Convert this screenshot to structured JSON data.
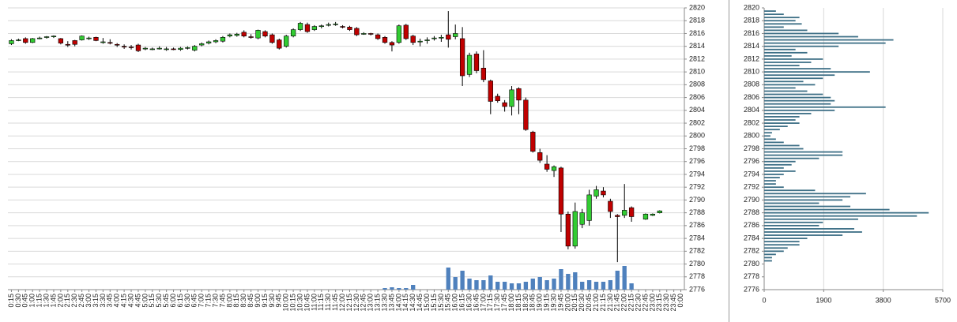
{
  "chart_data": [
    {
      "type": "candlestick",
      "categories": [
        "0:15",
        "0:30",
        "0:45",
        "1:00",
        "1:15",
        "1:30",
        "1:45",
        "2:00",
        "2:15",
        "2:30",
        "2:45",
        "3:00",
        "3:15",
        "3:30",
        "3:45",
        "4:00",
        "4:15",
        "4:30",
        "4:45",
        "5:00",
        "5:15",
        "5:30",
        "5:45",
        "6:00",
        "6:15",
        "6:30",
        "6:45",
        "7:00",
        "7:15",
        "7:30",
        "7:45",
        "8:00",
        "8:15",
        "8:30",
        "8:45",
        "9:00",
        "9:15",
        "9:30",
        "9:45",
        "10:00",
        "10:15",
        "10:30",
        "10:45",
        "11:00",
        "11:15",
        "11:30",
        "11:45",
        "12:00",
        "12:15",
        "12:30",
        "12:45",
        "13:00",
        "13:15",
        "13:30",
        "13:45",
        "14:00",
        "14:15",
        "14:30",
        "14:45",
        "15:00",
        "15:15",
        "15:30",
        "15:45",
        "16:00",
        "16:15",
        "16:30",
        "16:45",
        "17:00",
        "17:15",
        "17:30",
        "17:45",
        "18:00",
        "18:15",
        "18:30",
        "18:45",
        "19:00",
        "19:15",
        "19:30",
        "19:45",
        "20:00",
        "20:15",
        "20:30",
        "20:45",
        "21:00",
        "21:15",
        "21:30",
        "21:45",
        "22:00",
        "22:15",
        "22:30",
        "22:45",
        "23:00",
        "23:15",
        "23:30",
        "23:45",
        "0:00"
      ],
      "open": [
        2814.4,
        2815,
        2815.2,
        2814.6,
        2815.3,
        2815.4,
        2815.5,
        2815.2,
        2814.3,
        2814.9,
        2815,
        2815.3,
        2815.4,
        2814.7,
        2814.6,
        2814.3,
        2814,
        2813.9,
        2814.2,
        2813.6,
        2813.6,
        2813.7,
        2813.6,
        2813.6,
        2813.5,
        2813.7,
        2813.4,
        2814.2,
        2814.5,
        2814.7,
        2814.8,
        2815.6,
        2815.7,
        2816.2,
        2815.5,
        2815.3,
        2816.3,
        2815.8,
        2815,
        2814,
        2815.6,
        2816.6,
        2817.4,
        2816.6,
        2817.1,
        2817.3,
        2817.4,
        2817.1,
        2817,
        2816.8,
        2816,
        2816,
        2815.8,
        2815.4,
        2814.6,
        2814.6,
        2817.3,
        2815.6,
        2814.8,
        2815,
        2815.3,
        2815.4,
        2815.8,
        2815.5,
        2815.2,
        2809.6,
        2812.8,
        2810.6,
        2808.6,
        2806.2,
        2805.2,
        2804.6,
        2807.4,
        2805.6,
        2800.6,
        2797.4,
        2795.6,
        2794.6,
        2795,
        2787.8,
        2782.8,
        2786.2,
        2786.8,
        2790.6,
        2791.4,
        2789.8,
        2787.6,
        2787.6,
        2788.8,
        null,
        2787,
        2787.6,
        2788,
        null,
        null,
        null
      ],
      "high": [
        2815.1,
        2815.2,
        2815.4,
        2815.3,
        2815.5,
        2815.6,
        2815.7,
        2815.3,
        2814.8,
        2815,
        2815.7,
        2815.5,
        2815.5,
        2815.3,
        2815.1,
        2814.5,
        2814.3,
        2814.2,
        2814.4,
        2813.9,
        2813.8,
        2814,
        2813.9,
        2813.8,
        2813.9,
        2814,
        2814.2,
        2814.6,
        2814.9,
        2815.1,
        2815.6,
        2816,
        2816.1,
        2816.5,
        2815.9,
        2816.6,
        2816.5,
        2816,
        2815.2,
        2815.8,
        2816.8,
        2817.8,
        2817.7,
        2817.3,
        2817.4,
        2817.7,
        2817.8,
        2817.3,
        2817.2,
        2817,
        2816.2,
        2816.1,
        2816,
        2815.6,
        2814.8,
        2817.4,
        2817.5,
        2815.8,
        2815.2,
        2815.4,
        2815.6,
        2815.8,
        2819.5,
        2817.4,
        2817,
        2813,
        2813.2,
        2813.4,
        2808.8,
        2806.6,
        2805.6,
        2807.8,
        2807.6,
        2806,
        2800.8,
        2798,
        2797,
        2795.4,
        2795.2,
        2788.2,
        2789.6,
        2788.6,
        2791.6,
        2792.2,
        2792,
        2790.2,
        2787.8,
        2792.5,
        2789,
        null,
        2787.9,
        2787.9,
        2788.4,
        null,
        null,
        null
      ],
      "low": [
        2814.2,
        2814.8,
        2814.4,
        2814.5,
        2815.1,
        2815.2,
        2815.3,
        2814.3,
        2813.9,
        2814,
        2814.9,
        2815,
        2814.8,
        2814.4,
        2814.3,
        2813.9,
        2813.6,
        2813.5,
        2813.1,
        2813.4,
        2813.4,
        2813.5,
        2813.3,
        2813.4,
        2813.3,
        2813.5,
        2813.2,
        2814,
        2814.3,
        2814.5,
        2814.6,
        2815.4,
        2815.5,
        2815.4,
        2815.2,
        2815.1,
        2815.4,
        2814.4,
        2813.5,
        2813.8,
        2815.4,
        2816.4,
        2816.1,
        2816.4,
        2816.8,
        2817.1,
        2817.2,
        2816.8,
        2816.4,
        2815.6,
        2815.8,
        2815.7,
        2815,
        2814.4,
        2813.2,
        2814.4,
        2815,
        2814.2,
        2814,
        2814.4,
        2814.9,
        2814.7,
        2813.8,
        2815.1,
        2807.8,
        2809.2,
        2809.8,
        2808.4,
        2803.4,
        2805.2,
        2803.8,
        2803.2,
        2803.4,
        2800.8,
        2797.4,
        2795.8,
        2794.4,
        2793.6,
        2785,
        2782.3,
        2782.4,
        2785.6,
        2786,
        2790.2,
        2790.4,
        2787.2,
        2780.3,
        2787.2,
        2786.6,
        null,
        2786.9,
        2787.5,
        2787.9,
        null,
        null,
        null
      ],
      "close": [
        2814.9,
        2815,
        2814.6,
        2815.2,
        2815.3,
        2815.5,
        2815.6,
        2814.5,
        2814.2,
        2814.3,
        2815.6,
        2815.3,
        2814.9,
        2814.7,
        2814.5,
        2814.2,
        2813.9,
        2813.8,
        2813.3,
        2813.7,
        2813.6,
        2813.7,
        2813.6,
        2813.5,
        2813.7,
        2813.8,
        2814,
        2814.4,
        2814.7,
        2814.9,
        2815.4,
        2815.8,
        2815.9,
        2815.6,
        2815.4,
        2816.5,
        2815.6,
        2814.6,
        2813.7,
        2815.6,
        2816.6,
        2817.6,
        2816.3,
        2817.1,
        2817.2,
        2817.4,
        2817.5,
        2817,
        2816.6,
        2815.8,
        2816,
        2815.9,
        2815.2,
        2814.6,
        2814.2,
        2817.2,
        2815.2,
        2814.6,
        2814.8,
        2815,
        2815.3,
        2815.4,
        2815.1,
        2816,
        2809.4,
        2812.6,
        2810.2,
        2808.8,
        2805.4,
        2805.5,
        2804.6,
        2807.2,
        2805.6,
        2801,
        2797.6,
        2796.2,
        2794.8,
        2795.2,
        2787.8,
        2782.8,
        2788.2,
        2788,
        2790.8,
        2791.6,
        2790.8,
        2788.2,
        2787.4,
        2788.4,
        2787.4,
        null,
        2787.8,
        2787.8,
        2788.3,
        null,
        null,
        null
      ],
      "volume": [
        null,
        null,
        null,
        null,
        null,
        null,
        null,
        null,
        null,
        null,
        null,
        null,
        null,
        null,
        null,
        null,
        null,
        null,
        null,
        null,
        null,
        null,
        null,
        null,
        null,
        null,
        null,
        null,
        null,
        null,
        null,
        null,
        null,
        null,
        null,
        null,
        null,
        null,
        null,
        null,
        null,
        null,
        null,
        null,
        null,
        null,
        null,
        null,
        null,
        null,
        null,
        null,
        null,
        320,
        480,
        320,
        320,
        960,
        null,
        null,
        null,
        null,
        4480,
        2560,
        3840,
        2240,
        1920,
        1920,
        2880,
        1600,
        1600,
        1280,
        1280,
        1600,
        2240,
        2560,
        1920,
        2240,
        4160,
        3200,
        3520,
        1600,
        1920,
        1600,
        1600,
        1920,
        3840,
        4800,
        1280,
        null,
        null,
        null,
        null,
        null,
        null,
        null
      ],
      "up_color": "#33cc33",
      "down_color": "#c00000",
      "volume_color": "#4f81bd",
      "ylim": [
        2776,
        2820
      ],
      "yticks": [
        2776,
        2778,
        2780,
        2782,
        2784,
        2786,
        2788,
        2790,
        2792,
        2794,
        2796,
        2798,
        2800,
        2802,
        2804,
        2806,
        2808,
        2810,
        2812,
        2814,
        2816,
        2818,
        2820
      ],
      "grid": true
    },
    {
      "type": "hbar",
      "y": [
        2819.5,
        2819,
        2818.5,
        2818,
        2817.5,
        2817,
        2816.5,
        2816,
        2815.5,
        2815,
        2814.5,
        2814,
        2813.5,
        2813,
        2812.5,
        2812,
        2811.5,
        2811,
        2810.5,
        2810,
        2809.5,
        2809,
        2808.5,
        2808,
        2807.5,
        2807,
        2806.5,
        2806,
        2805.5,
        2805,
        2804.5,
        2804,
        2803.5,
        2803,
        2802.5,
        2802,
        2801.5,
        2801,
        2800.5,
        2800,
        2799.5,
        2799,
        2798.5,
        2798,
        2797.5,
        2797,
        2796.5,
        2796,
        2795.5,
        2795,
        2794.5,
        2794,
        2793.5,
        2793,
        2792.5,
        2792,
        2791.5,
        2791,
        2790.5,
        2790,
        2789.5,
        2789,
        2788.5,
        2788,
        2787.5,
        2787,
        2786.5,
        2786,
        2785.5,
        2785,
        2784.5,
        2784,
        2783.5,
        2783,
        2782.5,
        2782,
        2781.5,
        2781,
        2780.5
      ],
      "values": [
        375,
        625,
        1125,
        1000,
        1200,
        625,
        1375,
        2375,
        3000,
        4125,
        3875,
        2375,
        1000,
        1375,
        875,
        1875,
        1500,
        1125,
        2125,
        3375,
        2250,
        1875,
        1250,
        1625,
        1000,
        1375,
        1875,
        2125,
        2250,
        2125,
        3875,
        2250,
        1500,
        1125,
        1000,
        1125,
        750,
        500,
        250,
        200,
        375,
        625,
        1125,
        1250,
        2500,
        2500,
        1750,
        1000,
        875,
        625,
        1000,
        625,
        500,
        375,
        375,
        625,
        1625,
        3250,
        2750,
        2500,
        1750,
        2750,
        4000,
        5250,
        4875,
        3000,
        1875,
        1750,
        2875,
        3125,
        2500,
        1375,
        1125,
        1125,
        750,
        625,
        375,
        250,
        250
      ],
      "color": "#3d6f86",
      "xlim": [
        0,
        5700
      ],
      "xticks": [
        0,
        1900,
        3800,
        5700
      ],
      "ylim": [
        2776,
        2820
      ],
      "yticks": [
        2776,
        2778,
        2780,
        2782,
        2784,
        2786,
        2788,
        2790,
        2792,
        2794,
        2796,
        2798,
        2800,
        2802,
        2804,
        2806,
        2808,
        2810,
        2812,
        2814,
        2816,
        2818,
        2820
      ],
      "grid": true
    }
  ]
}
